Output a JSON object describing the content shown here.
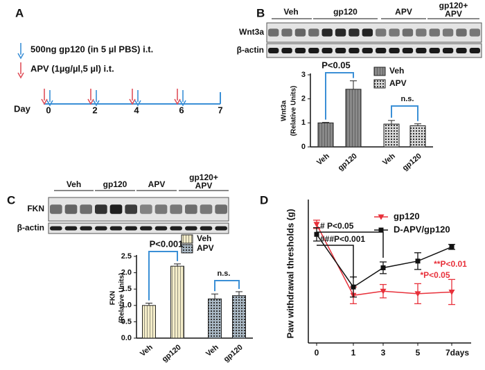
{
  "panel_labels": [
    "A",
    "B",
    "C",
    "D"
  ],
  "protocol": {
    "legend": [
      "500ng gp120 (in 5 µl PBS) i.t.",
      "APV (1µg/µl,5 µl) i.t."
    ],
    "axis_label": "Day",
    "days": [
      "0",
      "2",
      "4",
      "6",
      "7"
    ]
  },
  "blots": [
    {
      "groups": [
        "Veh",
        "gp120",
        "APV",
        "gp120+",
        "APV"
      ],
      "rows": [
        "Wnt3a",
        "β-actin"
      ]
    },
    {
      "groups": [
        "Veh",
        "gp120",
        "APV",
        "gp120+",
        "APV"
      ],
      "rows": [
        "FKN",
        "β-actin"
      ]
    }
  ],
  "chart_data": [
    {
      "type": "bar",
      "ylabel": [
        "Wnt3a",
        "(Relative Units)"
      ],
      "categories": [
        "Veh",
        "gp120",
        "Veh",
        "gp120"
      ],
      "series": [
        {
          "name": "Veh",
          "color": "#8a8a8a",
          "values": [
            1.0,
            2.4,
            null,
            null
          ],
          "errors": [
            0.02,
            0.35,
            null,
            null
          ]
        },
        {
          "name": "APV",
          "color": "#d8d8d8",
          "values": [
            null,
            null,
            0.95,
            0.88
          ],
          "errors": [
            null,
            null,
            0.15,
            0.08
          ]
        }
      ],
      "ylim": [
        0,
        3
      ],
      "yticks": [
        0,
        1,
        2,
        3
      ],
      "annotations": [
        "P<0.05",
        "n.s."
      ]
    },
    {
      "type": "bar",
      "ylabel": [
        "FKN",
        "(Relative Units)"
      ],
      "categories": [
        "Veh",
        "gp120",
        "Veh",
        "gp120"
      ],
      "series": [
        {
          "name": "Veh",
          "color": "#f3ecc8",
          "values": [
            1.0,
            2.2,
            null,
            null
          ],
          "errors": [
            0.07,
            0.07,
            null,
            null
          ]
        },
        {
          "name": "APV",
          "color": "#a9b8c4",
          "values": [
            null,
            null,
            1.2,
            1.3
          ],
          "errors": [
            null,
            null,
            0.15,
            0.12
          ]
        }
      ],
      "ylim": [
        0,
        2.5
      ],
      "yticks": [
        {
          "value": 0,
          "label": "0.0"
        },
        0.5,
        {
          "value": 1,
          "label": "1.0"
        },
        1.5,
        {
          "value": 2,
          "label": "2.0"
        },
        2.5
      ],
      "annotations": [
        "P<0.001",
        "n.s."
      ]
    },
    {
      "type": "line",
      "ylabel": "Paw withdrawal thresholds (g)",
      "categories": [
        "0",
        "1",
        "3",
        "5",
        "7days"
      ],
      "series": [
        {
          "name": "gp120",
          "color": "#e8303a",
          "marker": "triangle",
          "values": [
            1.42,
            0.57,
            0.62,
            0.59,
            0.61
          ],
          "errors": [
            0.05,
            0.1,
            0.08,
            0.12,
            0.15
          ]
        },
        {
          "name": "D-APV/gp120",
          "color": "#111111",
          "marker": "square",
          "values": [
            1.3,
            0.67,
            0.9,
            0.98,
            1.15
          ],
          "errors": [
            0.08,
            0.12,
            0.07,
            0.1,
            0.03
          ]
        }
      ],
      "ylim": [
        0,
        1.7
      ],
      "annotations": [
        {
          "text": "# P<0.05",
          "color": "#111111"
        },
        {
          "text": "###P<0.001",
          "color": "#111111"
        },
        {
          "text": "*P<0.05",
          "color": "#e8303a"
        },
        {
          "text": "**P<0.01",
          "color": "#e8303a"
        }
      ]
    }
  ]
}
